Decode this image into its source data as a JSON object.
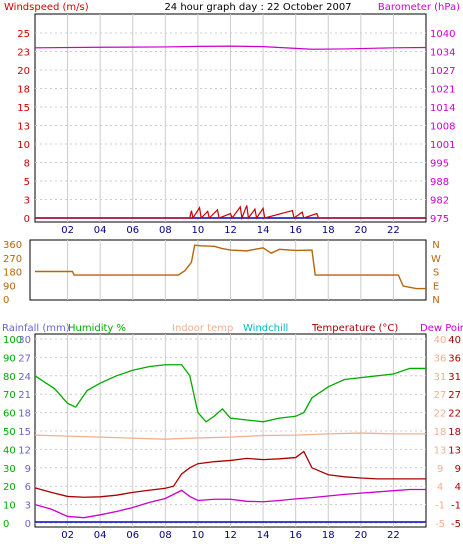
{
  "header": {
    "left_title": "Windspeed (m/s)",
    "center_title": "24 hour graph day : 22 October 2007",
    "right_title": "Barometer (hPa)"
  },
  "colors": {
    "windspeed": "#cc0000",
    "barometer": "#cc00cc",
    "wind_dir": "#b8650b",
    "humidity": "#00aa00",
    "indoor_temp": "#f0b090",
    "windchill": "#00bbbb",
    "temperature": "#aa0000",
    "dew_point": "#cc00cc",
    "rainfall": "#6666cc",
    "grid": "#cccccc",
    "frame": "#000000"
  },
  "chart_data": [
    {
      "type": "line",
      "panel": "wind-baro",
      "x_ticks": [
        "02",
        "04",
        "06",
        "08",
        "10",
        "12",
        "14",
        "16",
        "18",
        "20",
        "22"
      ],
      "y_left_ticks": [
        "25",
        "23",
        "20",
        "18",
        "15",
        "13",
        "10",
        "8",
        "5",
        "3",
        "0"
      ],
      "y_right_ticks": [
        "1040",
        "1034",
        "1027",
        "1021",
        "1014",
        "1008",
        "1001",
        "995",
        "988",
        "982",
        "975"
      ],
      "ylim_left": [
        0,
        25
      ],
      "ylim_right": [
        975,
        1040
      ],
      "series": [
        {
          "name": "Barometer (hPa)",
          "axis": "right",
          "points": [
            [
              0,
              1034.8
            ],
            [
              4,
              1035.0
            ],
            [
              8,
              1035.1
            ],
            [
              10,
              1035.3
            ],
            [
              12,
              1035.4
            ],
            [
              14,
              1035.2
            ],
            [
              16,
              1034.6
            ],
            [
              17,
              1034.3
            ],
            [
              19,
              1034.4
            ],
            [
              22,
              1034.8
            ],
            [
              24,
              1034.9
            ]
          ]
        },
        {
          "name": "Windspeed (m/s)",
          "axis": "left",
          "points": [
            [
              0,
              0
            ],
            [
              9.5,
              0
            ],
            [
              9.6,
              1
            ],
            [
              9.7,
              0
            ],
            [
              10.1,
              1.4
            ],
            [
              10.2,
              0
            ],
            [
              10.6,
              0.9
            ],
            [
              10.7,
              0
            ],
            [
              11.2,
              1.1
            ],
            [
              11.3,
              0
            ],
            [
              12,
              0.6
            ],
            [
              12.1,
              0
            ],
            [
              12.6,
              1.5
            ],
            [
              12.7,
              0
            ],
            [
              13.0,
              1.7
            ],
            [
              13.1,
              0
            ],
            [
              13.5,
              1.2
            ],
            [
              13.6,
              0
            ],
            [
              14.0,
              1.3
            ],
            [
              14.1,
              0
            ],
            [
              15.8,
              1.0
            ],
            [
              15.9,
              0
            ],
            [
              16.4,
              0.8
            ],
            [
              16.5,
              0
            ],
            [
              17.3,
              0.6
            ],
            [
              17.4,
              0
            ],
            [
              24,
              0
            ]
          ]
        }
      ]
    },
    {
      "type": "line",
      "panel": "wind-direction",
      "y_left_ticks": [
        "360",
        "270",
        "180",
        "90",
        "0"
      ],
      "y_right_ticks": [
        "N",
        "W",
        "S",
        "E",
        "N"
      ],
      "ylim": [
        0,
        360
      ],
      "series": [
        {
          "name": "Wind direction",
          "points": [
            [
              0,
              180
            ],
            [
              2.3,
              180
            ],
            [
              2.4,
              157
            ],
            [
              8.8,
              157
            ],
            [
              9.2,
              185
            ],
            [
              9.6,
              240
            ],
            [
              9.8,
              352
            ],
            [
              10.2,
              348
            ],
            [
              11,
              345
            ],
            [
              11.5,
              330
            ],
            [
              12,
              320
            ],
            [
              13,
              315
            ],
            [
              14,
              335
            ],
            [
              14.5,
              300
            ],
            [
              15,
              325
            ],
            [
              16,
              318
            ],
            [
              17,
              320
            ],
            [
              17.2,
              157
            ],
            [
              22.3,
              157
            ],
            [
              22.6,
              85
            ],
            [
              23.4,
              68
            ],
            [
              24,
              68
            ]
          ]
        }
      ]
    },
    {
      "type": "line",
      "panel": "temperature-humidity",
      "legend": [
        "Rainfall (mm)",
        "Humidity %",
        "Indoor temp",
        "Windchill",
        "Temperature (°C)",
        "Dew Point"
      ],
      "y_axis_rainfall": [
        "30",
        "27",
        "24",
        "21",
        "18",
        "15",
        "12",
        "9",
        "6",
        "3",
        "0"
      ],
      "y_axis_humidity": [
        "100",
        "90",
        "80",
        "70",
        "60",
        "50",
        "40",
        "30",
        "20",
        "10",
        "0"
      ],
      "y_axis_temp_c": [
        "40",
        "36",
        "31",
        "27",
        "22",
        "18",
        "13",
        "9",
        "4",
        "-1",
        "-5"
      ],
      "y_axis_temp_f": [
        "40",
        "36",
        "31",
        "27",
        "22",
        "18",
        "13",
        "9",
        "4",
        "-1",
        "-5"
      ],
      "ylim_humidity": [
        0,
        100
      ],
      "ylim_temp": [
        -5,
        40
      ],
      "series": [
        {
          "name": "Humidity %",
          "axis": "humidity",
          "points": [
            [
              0,
              80
            ],
            [
              1.2,
              73
            ],
            [
              2.0,
              65
            ],
            [
              2.5,
              63
            ],
            [
              3.2,
              72
            ],
            [
              4.0,
              76
            ],
            [
              5.0,
              80
            ],
            [
              6.0,
              83
            ],
            [
              7.0,
              85
            ],
            [
              8.0,
              86
            ],
            [
              9.0,
              86
            ],
            [
              9.5,
              80
            ],
            [
              10,
              60
            ],
            [
              10.5,
              55
            ],
            [
              11,
              58
            ],
            [
              11.5,
              62
            ],
            [
              12,
              57
            ],
            [
              13,
              56
            ],
            [
              14,
              55
            ],
            [
              15,
              57
            ],
            [
              16,
              58
            ],
            [
              16.5,
              60
            ],
            [
              17,
              68
            ],
            [
              18,
              74
            ],
            [
              19,
              78
            ],
            [
              20,
              79
            ],
            [
              21,
              80
            ],
            [
              22,
              81
            ],
            [
              23,
              84
            ],
            [
              24,
              84
            ]
          ]
        },
        {
          "name": "Indoor temp",
          "axis": "temp",
          "points": [
            [
              0,
              16.5
            ],
            [
              4,
              16.0
            ],
            [
              8,
              15.5
            ],
            [
              10,
              15.8
            ],
            [
              12,
              16.0
            ],
            [
              14,
              16.4
            ],
            [
              16,
              16.5
            ],
            [
              18,
              16.8
            ],
            [
              20,
              17.0
            ],
            [
              22,
              16.8
            ],
            [
              24,
              16.8
            ]
          ]
        },
        {
          "name": "Temperature (°C)",
          "axis": "temp",
          "points": [
            [
              0,
              3.6
            ],
            [
              1,
              2.5
            ],
            [
              2,
              1.5
            ],
            [
              3,
              1.3
            ],
            [
              4,
              1.4
            ],
            [
              5,
              1.8
            ],
            [
              6,
              2.5
            ],
            [
              7,
              3.0
            ],
            [
              8,
              3.5
            ],
            [
              8.5,
              4.0
            ],
            [
              9,
              7.0
            ],
            [
              9.5,
              8.5
            ],
            [
              10,
              9.5
            ],
            [
              11,
              10.0
            ],
            [
              12,
              10.3
            ],
            [
              13,
              10.8
            ],
            [
              14,
              10.5
            ],
            [
              15,
              10.7
            ],
            [
              16,
              11.0
            ],
            [
              16.5,
              12.5
            ],
            [
              17,
              8.5
            ],
            [
              18,
              6.8
            ],
            [
              19,
              6.3
            ],
            [
              20,
              6.0
            ],
            [
              21,
              5.8
            ],
            [
              22,
              5.8
            ],
            [
              23,
              5.8
            ],
            [
              24,
              5.8
            ]
          ]
        },
        {
          "name": "Dew Point",
          "axis": "temp",
          "points": [
            [
              0,
              -0.5
            ],
            [
              1,
              -1.6
            ],
            [
              2,
              -3.4
            ],
            [
              3,
              -3.7
            ],
            [
              4,
              -3.0
            ],
            [
              5,
              -2.2
            ],
            [
              6,
              -1.2
            ],
            [
              7,
              0.0
            ],
            [
              8,
              1.0
            ],
            [
              8.5,
              2.0
            ],
            [
              9,
              3.0
            ],
            [
              9.5,
              1.5
            ],
            [
              10,
              0.5
            ],
            [
              11,
              0.8
            ],
            [
              12,
              0.8
            ],
            [
              13,
              0.3
            ],
            [
              14,
              0.2
            ],
            [
              15,
              0.5
            ],
            [
              16,
              0.9
            ],
            [
              17,
              1.2
            ],
            [
              18,
              1.6
            ],
            [
              19,
              2.0
            ],
            [
              20,
              2.3
            ],
            [
              21,
              2.6
            ],
            [
              22,
              2.9
            ],
            [
              23,
              3.2
            ],
            [
              24,
              3.2
            ]
          ]
        },
        {
          "name": "Rainfall (mm)",
          "axis": "rainfall",
          "points": [
            [
              0,
              0
            ],
            [
              24,
              0
            ]
          ]
        }
      ]
    }
  ]
}
